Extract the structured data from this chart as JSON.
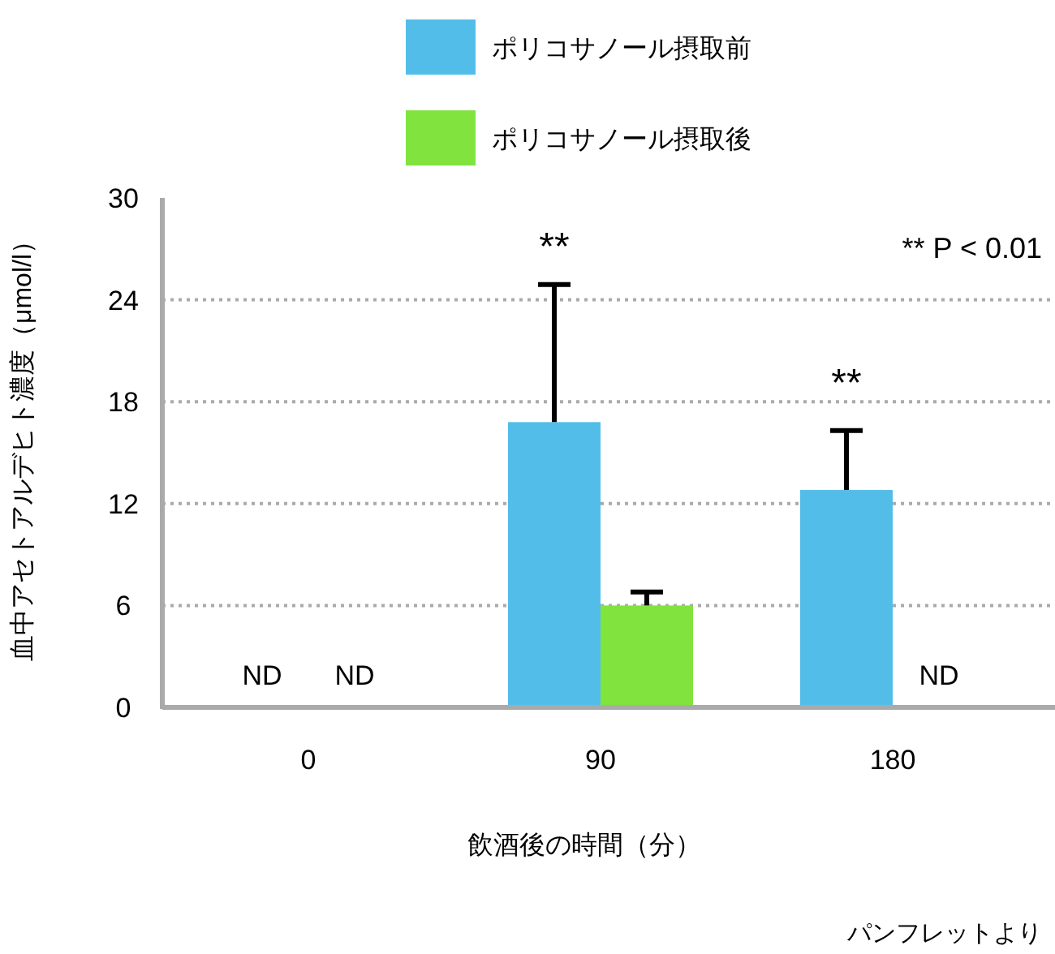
{
  "chart_data": {
    "type": "bar",
    "categories": [
      "0",
      "90",
      "180"
    ],
    "series": [
      {
        "name": "ポリコサノール摂取前",
        "color": "#53bde9",
        "values": [
          null,
          16.8,
          12.8
        ],
        "errors": [
          null,
          [
            16.8,
            24.9
          ],
          [
            12.8,
            16.3
          ]
        ],
        "value_labels": [
          "ND",
          null,
          null
        ]
      },
      {
        "name": "ポリコサノール摂取後",
        "color": "#80e33e",
        "values": [
          null,
          6.0,
          null
        ],
        "errors": [
          null,
          [
            6.0,
            6.8
          ],
          null
        ],
        "value_labels": [
          "ND",
          null,
          "ND"
        ]
      }
    ],
    "ylim": [
      0,
      30
    ],
    "yticks": [
      0,
      6,
      12,
      18,
      24,
      30
    ],
    "grid": "y",
    "legend": "top",
    "xlabel": "飲酒後の時間（分）",
    "ylabel": "血中アセトアルデヒト濃度（μmol/l）",
    "annotations": [
      "**",
      "**",
      "** P < 0.01",
      "パンフレットより"
    ]
  }
}
